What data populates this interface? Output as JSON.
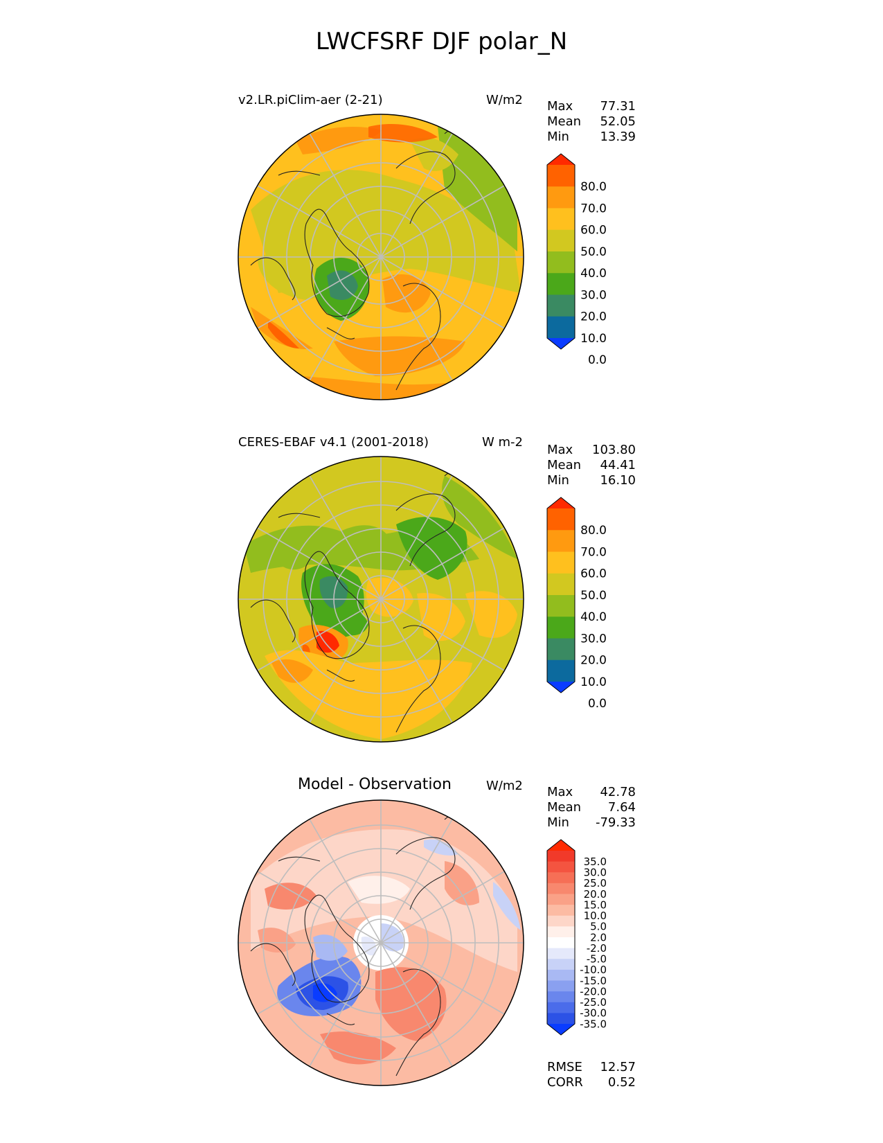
{
  "title": "LWCFSRF DJF polar_N",
  "panels": [
    {
      "id": "model",
      "title": "v2.LR.piClim-aer (2-21)",
      "units": "W/m2",
      "stats": [
        {
          "label": "Max",
          "value": "77.31"
        },
        {
          "label": "Mean",
          "value": "52.05"
        },
        {
          "label": "Min",
          "value": "13.39"
        }
      ],
      "colorbar": {
        "ticks": [
          "80.0",
          "70.0",
          "60.0",
          "50.0",
          "40.0",
          "30.0",
          "20.0",
          "10.0",
          "0.0"
        ],
        "colors": [
          "#ff2a00",
          "#ff6200",
          "#ff9a10",
          "#ffc01e",
          "#d2c820",
          "#92bd1e",
          "#4ba81a",
          "#3a8a62",
          "#0c6a9e",
          "#0a3cff"
        ]
      }
    },
    {
      "id": "obs",
      "title": "CERES-EBAF v4.1 (2001-2018)",
      "units": "W m-2",
      "stats": [
        {
          "label": "Max",
          "value": "103.80"
        },
        {
          "label": "Mean",
          "value": "44.41"
        },
        {
          "label": "Min",
          "value": "16.10"
        }
      ],
      "colorbar": {
        "ticks": [
          "80.0",
          "70.0",
          "60.0",
          "50.0",
          "40.0",
          "30.0",
          "20.0",
          "10.0",
          "0.0"
        ],
        "colors": [
          "#ff2a00",
          "#ff6200",
          "#ff9a10",
          "#ffc01e",
          "#d2c820",
          "#92bd1e",
          "#4ba81a",
          "#3a8a62",
          "#0c6a9e",
          "#0a3cff"
        ]
      }
    },
    {
      "id": "diff",
      "title": "Model - Observation",
      "units": "W/m2",
      "stats": [
        {
          "label": "Max",
          "value": "42.78"
        },
        {
          "label": "Mean",
          "value": "7.64"
        },
        {
          "label": "Min",
          "value": "-79.33"
        }
      ],
      "colorbar": {
        "ticks": [
          "35.0",
          "30.0",
          "25.0",
          "20.0",
          "15.0",
          "10.0",
          "5.0",
          "2.0",
          "-2.0",
          "-5.0",
          "-10.0",
          "-15.0",
          "-20.0",
          "-25.0",
          "-30.0",
          "-35.0"
        ],
        "colors": [
          "#ff2a00",
          "#f13a2a",
          "#f45440",
          "#f66f56",
          "#f8886e",
          "#faa187",
          "#fcbba3",
          "#fdd6c8",
          "#fff0ea",
          "#ffffff",
          "#e5e9fb",
          "#c8d2f7",
          "#a9b9f3",
          "#8aa0f0",
          "#6a86ed",
          "#4b6cea",
          "#2c52e6",
          "#0a3cff"
        ]
      },
      "metrics": [
        {
          "label": "RMSE",
          "value": "12.57"
        },
        {
          "label": "CORR",
          "value": "0.52"
        }
      ]
    }
  ]
}
